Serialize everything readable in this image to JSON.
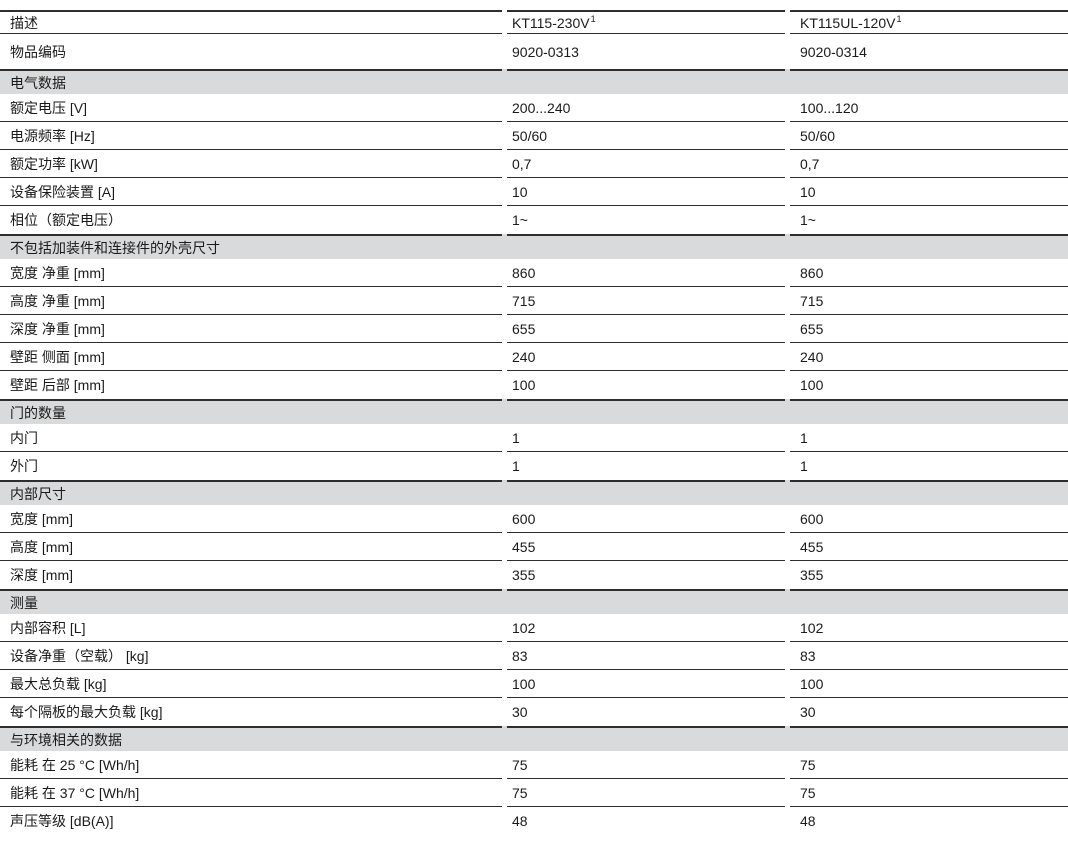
{
  "colors": {
    "section_band_bg": "#d9dadb",
    "rule": "#2e2e2e",
    "text": "#1a1a1a"
  },
  "table": {
    "columns": [
      {
        "label": "描述",
        "sup": ""
      },
      {
        "label": "KT115-230V",
        "sup": "1"
      },
      {
        "label": "KT115UL-120V",
        "sup": "1"
      }
    ],
    "rows": [
      {
        "type": "row",
        "tall": true,
        "label": "物品编码",
        "v1": "9020-0313",
        "v2": "9020-0314"
      },
      {
        "type": "section",
        "label": "电气数据"
      },
      {
        "type": "row",
        "label": "额定电压 [V]",
        "v1": "200...240",
        "v2": "100...120"
      },
      {
        "type": "row",
        "label": "电源频率 [Hz]",
        "v1": "50/60",
        "v2": "50/60"
      },
      {
        "type": "row",
        "label": "额定功率 [kW]",
        "v1": "0,7",
        "v2": "0,7"
      },
      {
        "type": "row",
        "label": "设备保险装置 [A]",
        "v1": "10",
        "v2": "10"
      },
      {
        "type": "row",
        "label": "相位（额定电压）",
        "v1": "1~",
        "v2": "1~"
      },
      {
        "type": "section",
        "label": "不包括加装件和连接件的外壳尺寸"
      },
      {
        "type": "row",
        "label": "宽度 净重 [mm]",
        "v1": "860",
        "v2": "860"
      },
      {
        "type": "row",
        "label": "高度 净重 [mm]",
        "v1": "715",
        "v2": "715"
      },
      {
        "type": "row",
        "label": "深度 净重 [mm]",
        "v1": "655",
        "v2": "655"
      },
      {
        "type": "row",
        "label": "壁距 侧面 [mm]",
        "v1": "240",
        "v2": "240"
      },
      {
        "type": "row",
        "label": "壁距 后部 [mm]",
        "v1": "100",
        "v2": "100"
      },
      {
        "type": "section",
        "label": "门的数量"
      },
      {
        "type": "row",
        "label": "内门",
        "v1": "1",
        "v2": "1"
      },
      {
        "type": "row",
        "label": "外门",
        "v1": "1",
        "v2": "1"
      },
      {
        "type": "section",
        "label": "内部尺寸"
      },
      {
        "type": "row",
        "label": "宽度 [mm]",
        "v1": "600",
        "v2": "600"
      },
      {
        "type": "row",
        "label": "高度 [mm]",
        "v1": "455",
        "v2": "455"
      },
      {
        "type": "row",
        "label": "深度 [mm]",
        "v1": "355",
        "v2": "355"
      },
      {
        "type": "section",
        "label": "测量"
      },
      {
        "type": "row",
        "label": "内部容积 [L]",
        "v1": "102",
        "v2": "102"
      },
      {
        "type": "row",
        "label": "设备净重（空载） [kg]",
        "v1": "83",
        "v2": "83"
      },
      {
        "type": "row",
        "label": "最大总负载 [kg]",
        "v1": "100",
        "v2": "100"
      },
      {
        "type": "row",
        "label": "每个隔板的最大负载 [kg]",
        "v1": "30",
        "v2": "30"
      },
      {
        "type": "section",
        "label": "与环境相关的数据"
      },
      {
        "type": "row",
        "label": "能耗 在 25 °C [Wh/h]",
        "v1": "75",
        "v2": "75"
      },
      {
        "type": "row",
        "label": "能耗 在 37 °C [Wh/h]",
        "v1": "75",
        "v2": "75"
      },
      {
        "type": "row",
        "label": "声压等级 [dB(A)]",
        "v1": "48",
        "v2": "48"
      }
    ]
  }
}
